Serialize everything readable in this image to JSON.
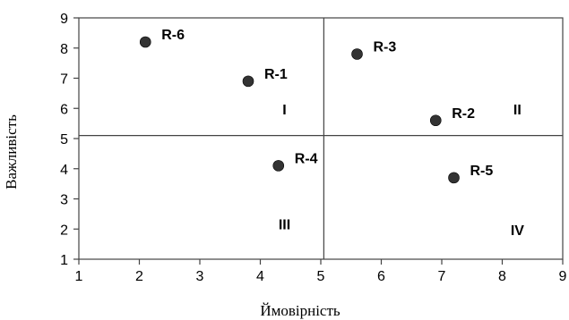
{
  "chart_data": {
    "type": "scatter",
    "title": "",
    "xlabel": "Ймовірність",
    "ylabel": "Важливість",
    "xlim": [
      1,
      9
    ],
    "ylim": [
      1,
      9
    ],
    "xticks": [
      1,
      2,
      3,
      4,
      5,
      6,
      7,
      8,
      9
    ],
    "yticks": [
      1,
      2,
      3,
      4,
      5,
      6,
      7,
      8,
      9
    ],
    "grid": false,
    "divider": {
      "x": 5.05,
      "y": 5.1
    },
    "marker_color": "#333333",
    "points": [
      {
        "label": "R-6",
        "x": 2.1,
        "y": 8.2
      },
      {
        "label": "R-1",
        "x": 3.8,
        "y": 6.9
      },
      {
        "label": "R-3",
        "x": 5.6,
        "y": 7.8
      },
      {
        "label": "R-2",
        "x": 6.9,
        "y": 5.6
      },
      {
        "label": "R-4",
        "x": 4.3,
        "y": 4.1
      },
      {
        "label": "R-5",
        "x": 7.2,
        "y": 3.7
      }
    ],
    "quadrant_labels": [
      {
        "text": "I",
        "x": 4.4,
        "y": 5.8
      },
      {
        "text": "II",
        "x": 8.25,
        "y": 5.8
      },
      {
        "text": "III",
        "x": 4.4,
        "y": 2.0
      },
      {
        "text": "IV",
        "x": 8.25,
        "y": 1.8
      }
    ]
  }
}
